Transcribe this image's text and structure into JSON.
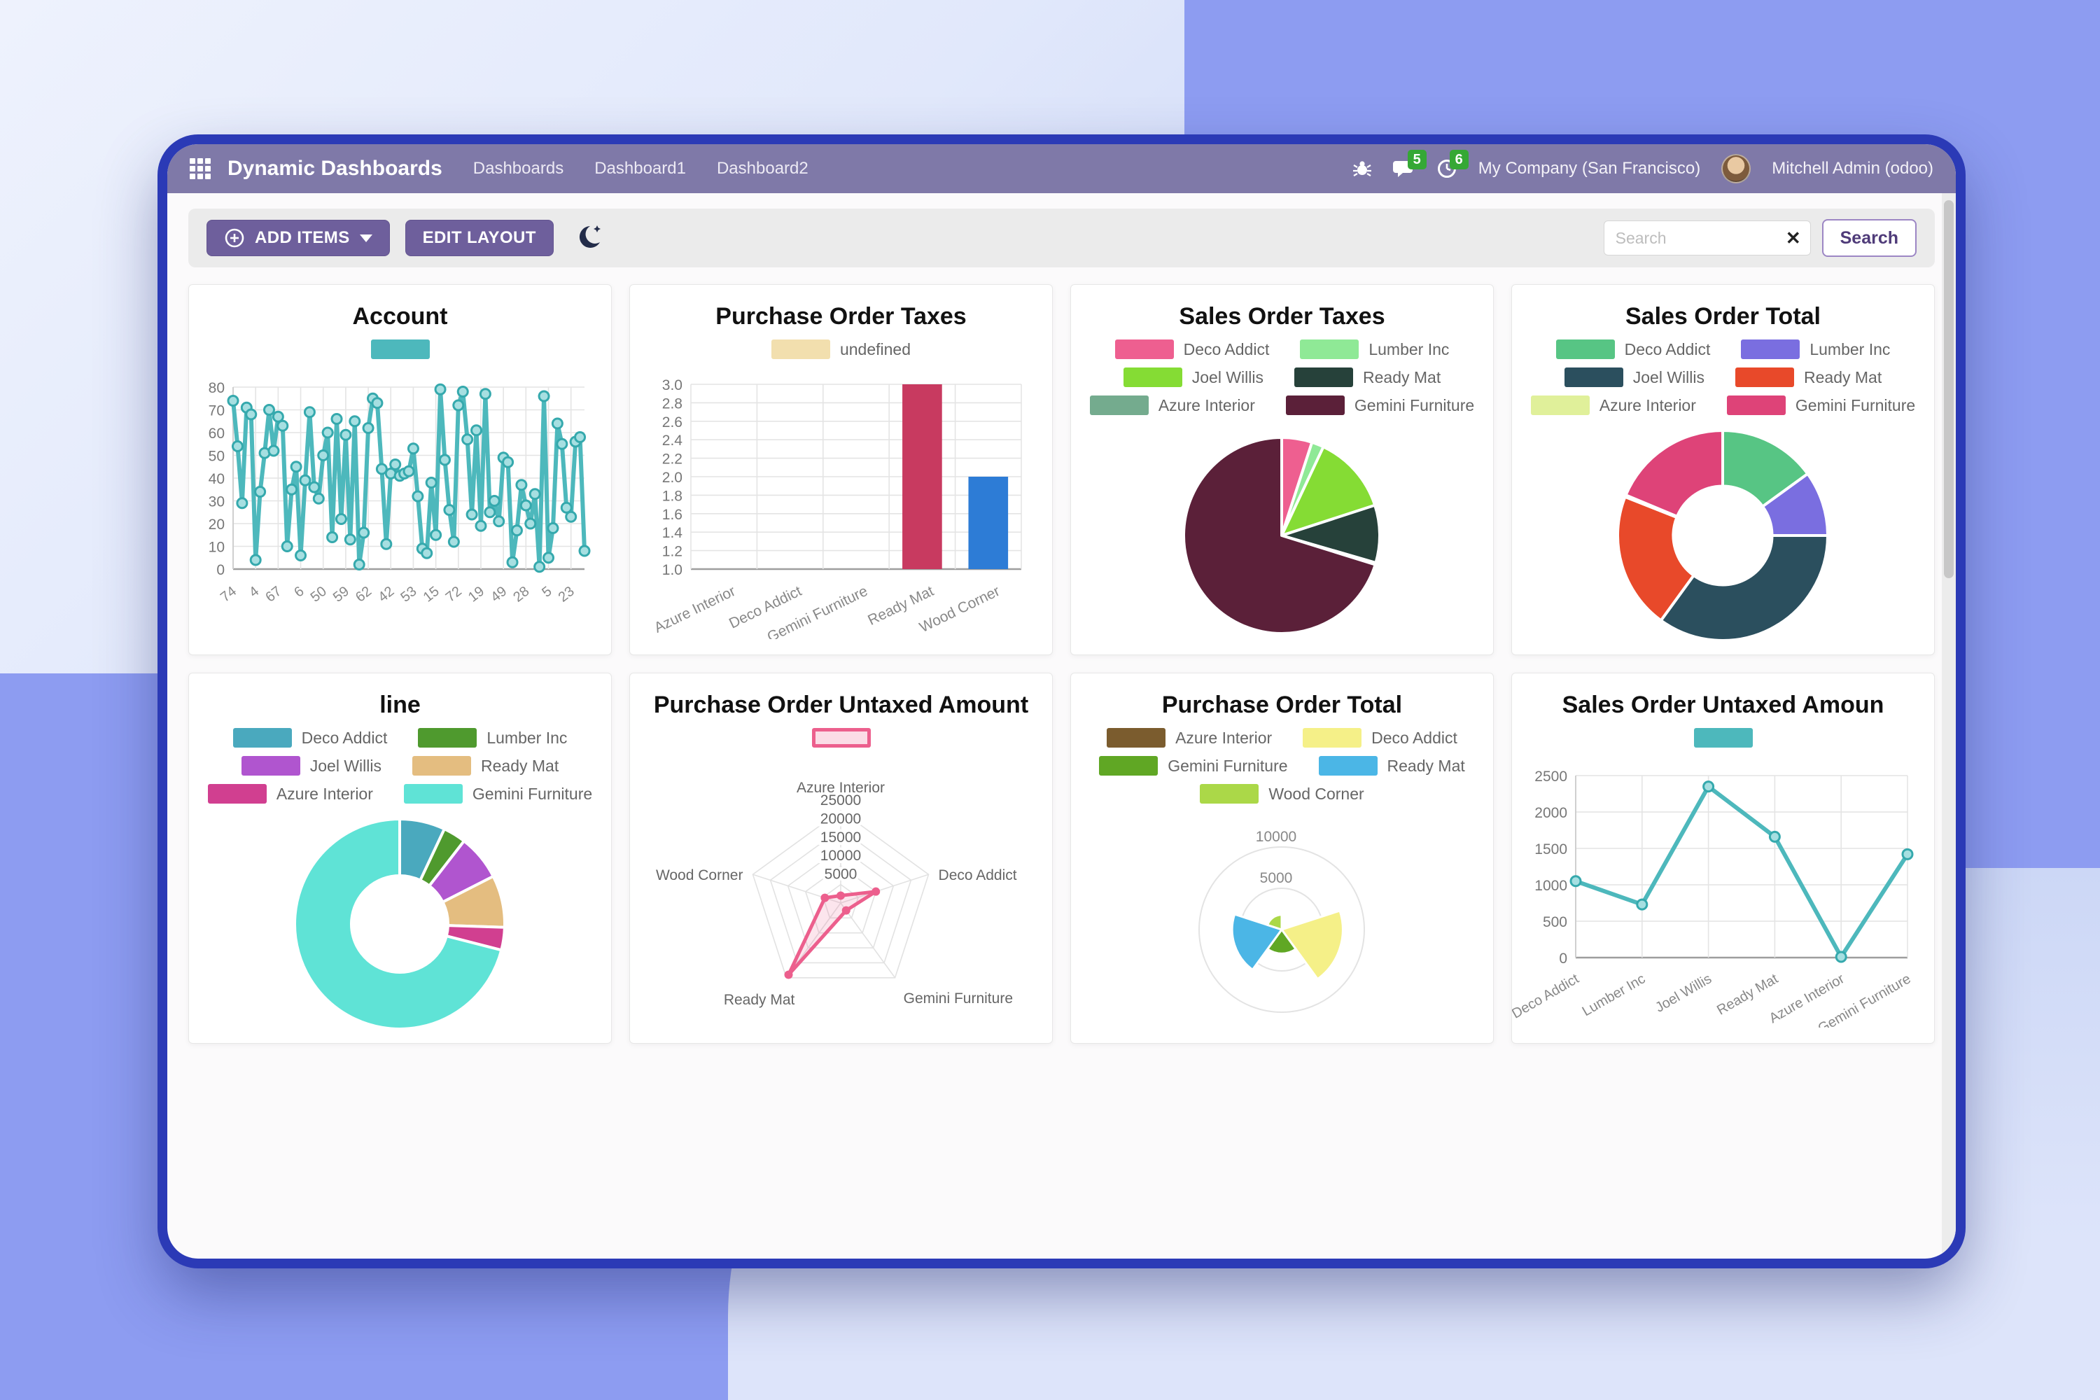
{
  "colors": {
    "page_bg": "#8d9cf1",
    "window_border": "#2b3ab6",
    "navbar_bg": "#7f79a8",
    "toolbar_bg": "#ebebeb",
    "button_purple": "#6e5f9c",
    "accent_teal": "#4db8bc",
    "badge_green": "#35a835"
  },
  "navbar": {
    "brand": "Dynamic Dashboards",
    "menus": [
      "Dashboards",
      "Dashboard1",
      "Dashboard2"
    ],
    "messages_count": "5",
    "activities_count": "6",
    "company": "My Company (San Francisco)",
    "user": "Mitchell Admin (odoo)"
  },
  "toolbar": {
    "add_items": "ADD ITEMS",
    "edit_layout": "EDIT LAYOUT",
    "search_placeholder": "Search",
    "search_button": "Search"
  },
  "cards": [
    {
      "title": "Account",
      "chart": {
        "type": "line",
        "color": "#4db8bc",
        "legend": [
          {
            "color": "#4db8bc"
          }
        ],
        "y": {
          "min": 0,
          "max": 80,
          "step": 10
        },
        "values": [
          74,
          54,
          29,
          71,
          68,
          4,
          34,
          51,
          70,
          52,
          67,
          63,
          10,
          35,
          45,
          6,
          39,
          69,
          36,
          31,
          50,
          60,
          14,
          66,
          22,
          59,
          13,
          65,
          2,
          16,
          62,
          75,
          73,
          44,
          11,
          42,
          46,
          41,
          42,
          43,
          53,
          32,
          9,
          7,
          38,
          15,
          79,
          48,
          26,
          12,
          72,
          78,
          57,
          24,
          61,
          19,
          77,
          25,
          30,
          21,
          49,
          47,
          3,
          17,
          37,
          28,
          20,
          33,
          1,
          76,
          5,
          18,
          64,
          55,
          27,
          23,
          56,
          58,
          8
        ],
        "tick_every": 5,
        "xtick_labels": [
          "74",
          "4",
          "67",
          "6",
          "50",
          "59",
          "62",
          "42",
          "53",
          "15",
          "72",
          "19",
          "49",
          "28",
          "5",
          "23"
        ]
      }
    },
    {
      "title": "Purchase Order Taxes",
      "chart": {
        "type": "bar",
        "legend": [
          {
            "color": "#f2dfae",
            "label": "undefined"
          }
        ],
        "categories": [
          "Azure Interior",
          "Deco Addict",
          "Gemini Furniture",
          "Ready Mat",
          "Wood Corner"
        ],
        "values": [
          null,
          null,
          null,
          3,
          2
        ],
        "bar_colors": [
          null,
          null,
          null,
          "#c83a60",
          "#2d7cd6"
        ],
        "y": {
          "min": 1.0,
          "max": 3.0,
          "step": 0.2
        }
      }
    },
    {
      "title": "Sales Order Taxes",
      "chart": {
        "type": "pie",
        "inner_ratio": 0,
        "legend_cols": 2,
        "series": [
          {
            "label": "Deco Addict",
            "color": "#ee5f90",
            "value": 5
          },
          {
            "label": "Lumber Inc",
            "color": "#8fe996",
            "value": 2
          },
          {
            "label": "Joel Willis",
            "color": "#85dc34",
            "value": 13
          },
          {
            "label": "Ready Mat",
            "color": "#26413a",
            "value": 9.5
          },
          {
            "label": "Azure Interior",
            "color": "#74ab8e",
            "value": 0.3
          },
          {
            "label": "Gemini Furniture",
            "color": "#5b2039",
            "value": 70.2
          }
        ]
      }
    },
    {
      "title": "Sales Order Total",
      "chart": {
        "type": "pie",
        "inner_ratio": 0.47,
        "legend_cols": 2,
        "series": [
          {
            "label": "Deco Addict",
            "color": "#57c584",
            "value": 15
          },
          {
            "label": "Lumber Inc",
            "color": "#7a6ee0",
            "value": 10
          },
          {
            "label": "Joel Willis",
            "color": "#2b4f5e",
            "value": 35
          },
          {
            "label": "Ready Mat",
            "color": "#e8492a",
            "value": 21
          },
          {
            "label": "Azure Interior",
            "color": "#e0f09a",
            "value": 0.3
          },
          {
            "label": "Gemini Furniture",
            "color": "#de4378",
            "value": 18.7
          }
        ]
      }
    },
    {
      "title": "line",
      "chart": {
        "type": "pie",
        "inner_ratio": 0.46,
        "legend_cols": 2,
        "series": [
          {
            "label": "Deco Addict",
            "color": "#4aa9be",
            "value": 7
          },
          {
            "label": "Lumber Inc",
            "color": "#4f9a2e",
            "value": 3.5
          },
          {
            "label": "Joel Willis",
            "color": "#b055cf",
            "value": 7
          },
          {
            "label": "Ready Mat",
            "color": "#e4bd80",
            "value": 8
          },
          {
            "label": "Azure Interior",
            "color": "#d13f90",
            "value": 3.5
          },
          {
            "label": "Gemini Furniture",
            "color": "#5fe3d6",
            "value": 71
          }
        ]
      }
    },
    {
      "title": "Purchase Order Untaxed Amount",
      "chart": {
        "type": "radar",
        "color": "#ec5f8d",
        "fill": "rgba(236,95,141,0.16)",
        "legend": [
          {
            "color": "#fbdce6",
            "border": "#ec5f8d"
          }
        ],
        "axes": [
          "Azure Interior",
          "Deco Addict",
          "Gemini Furniture",
          "Ready Mat",
          "Wood Corner"
        ],
        "values": [
          2000,
          10000,
          2500,
          24000,
          4500
        ],
        "max": 25000,
        "ticks": [
          5000,
          10000,
          15000,
          20000,
          25000
        ]
      }
    },
    {
      "title": "Purchase Order Total",
      "chart": {
        "type": "polar",
        "max": 10000,
        "rings": [
          5000,
          10000
        ],
        "legend_cols": 2,
        "series": [
          {
            "label": "Azure Interior",
            "color": "#7b5c2e",
            "value": 300
          },
          {
            "label": "Deco Addict",
            "color": "#f5f088",
            "value": 7400
          },
          {
            "label": "Gemini Furniture",
            "color": "#60a724",
            "value": 2900
          },
          {
            "label": "Ready Mat",
            "color": "#4bb6e6",
            "value": 6000
          },
          {
            "label": "Wood Corner",
            "color": "#abd848",
            "value": 1800
          }
        ]
      }
    },
    {
      "title": "Sales Order Untaxed Amoun",
      "chart": {
        "type": "line",
        "color": "#4db8bc",
        "legend": [
          {
            "color": "#4db8bc"
          }
        ],
        "y": {
          "min": 0,
          "max": 2500,
          "step": 500
        },
        "categories": [
          "Deco Addict",
          "Lumber Inc",
          "Joel Willis",
          "Ready Mat",
          "Azure Interior",
          "Gemini Furniture"
        ],
        "values": [
          1050,
          730,
          2350,
          1660,
          10,
          1420
        ]
      }
    }
  ]
}
